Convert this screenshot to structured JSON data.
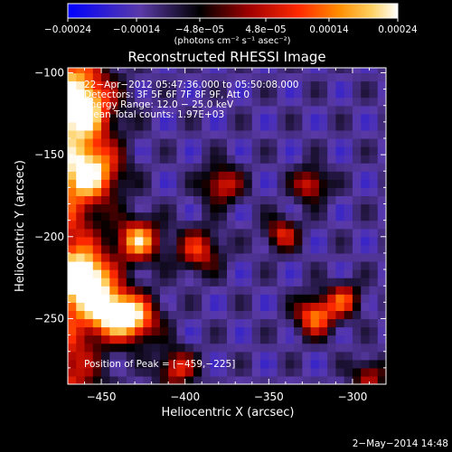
{
  "chart_data": {
    "type": "heatmap",
    "title": "Reconstructed RHESSI Image",
    "xlabel": "Heliocentric X (arcsec)",
    "ylabel": "Heliocentric Y (arcsec)",
    "xlim": [
      -470,
      -280
    ],
    "ylim": [
      -290,
      -97
    ],
    "x_ticks": [
      -450,
      -400,
      -350,
      -300
    ],
    "x_tick_labels": [
      "−450",
      "−400",
      "−350",
      "−300"
    ],
    "y_ticks": [
      -100,
      -150,
      -200,
      -250
    ],
    "y_tick_labels": [
      "−100",
      "−150",
      "−200",
      "−250"
    ],
    "colorbar": {
      "range": [
        -0.00024,
        0.00024
      ],
      "ticks": [
        -0.00024,
        -0.00014,
        -4.8e-05,
        4.8e-05,
        0.00014,
        0.00024
      ],
      "tick_labels": [
        "−0.00024",
        "−0.00014",
        "−4.8e−05",
        "4.8e−05",
        "0.00014",
        "0.00024"
      ],
      "unit_label": "(photons cm⁻² s⁻¹ asec⁻²)",
      "colors": [
        "#0000ff",
        "#5a3aa8",
        "#000000",
        "#a00000",
        "#ff2a00",
        "#ff8c00",
        "#ffd060",
        "#ffffff"
      ]
    },
    "annotations": [
      "22−Apr−2012 05:47:36.000 to 05:50:08.000",
      "Detectors: 3F 5F 6F 7F 8F 9F, Att 0",
      "Energy Range: 12.0 − 25.0 keV",
      "Clean    Total counts: 1.97E+03"
    ],
    "peak_label": "Position of Peak = [−459,−225]",
    "peak": [
      -459,
      -225
    ],
    "sources": [
      {
        "x": -462,
        "y": -120,
        "s": 14,
        "v": 0.85
      },
      {
        "x": -455,
        "y": -160,
        "s": 12,
        "v": 0.8
      },
      {
        "x": -459,
        "y": -225,
        "s": 11,
        "v": 1.0
      },
      {
        "x": -445,
        "y": -245,
        "s": 10,
        "v": 0.9
      },
      {
        "x": -430,
        "y": -250,
        "s": 10,
        "v": 0.85
      },
      {
        "x": -428,
        "y": -202,
        "s": 9,
        "v": 0.9
      },
      {
        "x": -392,
        "y": -208,
        "s": 9,
        "v": 0.6
      },
      {
        "x": -378,
        "y": -168,
        "s": 8,
        "v": 0.6
      },
      {
        "x": -342,
        "y": -198,
        "s": 7,
        "v": 0.55
      },
      {
        "x": -325,
        "y": -168,
        "s": 7,
        "v": 0.6
      },
      {
        "x": -322,
        "y": -248,
        "s": 8,
        "v": 0.8
      },
      {
        "x": -305,
        "y": -238,
        "s": 7,
        "v": 0.6
      },
      {
        "x": -405,
        "y": -280,
        "s": 8,
        "v": 0.6
      },
      {
        "x": -290,
        "y": -285,
        "s": 7,
        "v": 0.5
      }
    ]
  },
  "footer": {
    "timestamp": "2−May−2014 14:48"
  }
}
